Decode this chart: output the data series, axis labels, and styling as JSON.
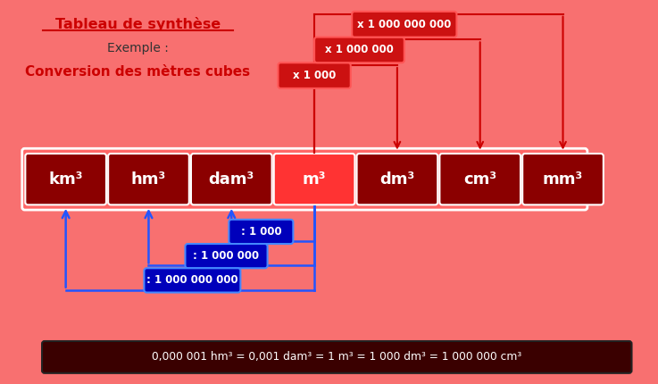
{
  "bg_color": "#F87070",
  "title1": "Tableau de synthèse",
  "title2": "Exemple :",
  "title3": "Conversion des mètres cubes",
  "units": [
    "km³",
    "hm³",
    "dam³",
    "m³",
    "dm³",
    "cm³",
    "mm³"
  ],
  "unit_box_color": "#8B0000",
  "unit_box_color_highlight": "#FF3333",
  "red_label_x1000": "x 1 000",
  "red_label_x1000000": "x 1 000 000",
  "red_label_x1000000000": "x 1 000 000 000",
  "blue_label_1000": ": 1 000",
  "blue_label_1000000": ": 1 000 000",
  "blue_label_1000000000": ": 1 000 000 000",
  "footer_box_color": "#3A0000",
  "footer_text": "0,000 001 hm³ = 0,001 dam³ = 1 m³ = 1 000 dm³ = 1 000 000 cm³",
  "footer_text_bold": "1 m³"
}
